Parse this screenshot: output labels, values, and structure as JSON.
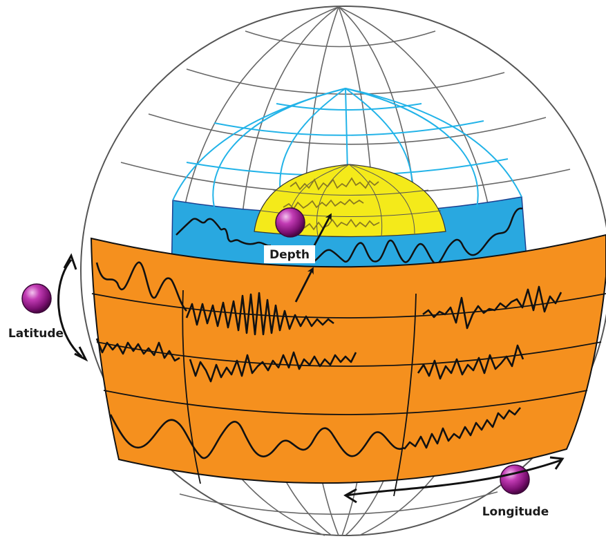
{
  "labels": {
    "depth": "Depth",
    "latitude": "Latitude",
    "longitude": "Longitude"
  },
  "colors": {
    "outer_grid": "#555555",
    "mantle_blue": "#29a8e0",
    "mantle_grid": "#22b3e8",
    "core_yellow": "#f4ea1a",
    "band_orange": "#f5901e",
    "waveform": "#111111",
    "marker_purple": "#9b1c8e",
    "arrow": "#111111"
  },
  "icons": {
    "marker": "purple-sphere-marker",
    "arrow": "curved-double-arrow"
  }
}
